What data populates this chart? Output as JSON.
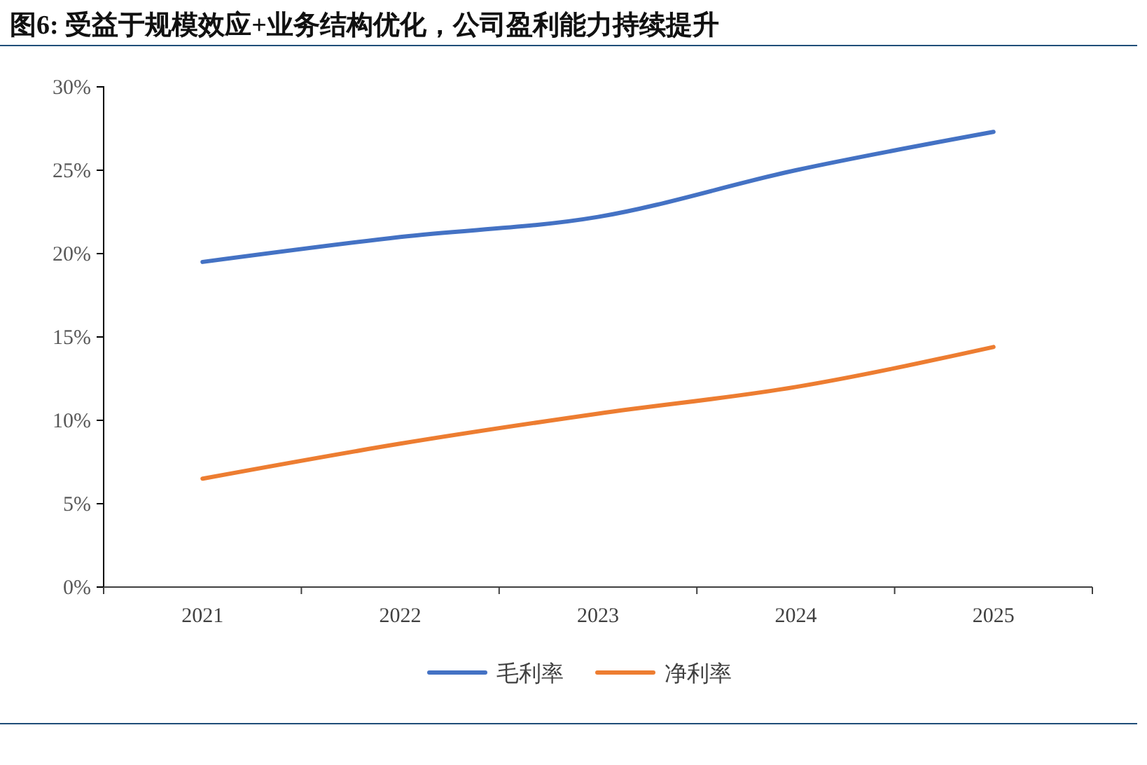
{
  "chart_data": {
    "type": "line",
    "title": "图6: 受益于规模效应+业务结构优化，公司盈利能力持续提升",
    "categories": [
      "2021",
      "2022",
      "2023",
      "2024",
      "2025"
    ],
    "series": [
      {
        "name": "毛利率",
        "color": "#4472c4",
        "values": [
          19.5,
          21.0,
          22.2,
          25.0,
          27.3
        ]
      },
      {
        "name": "净利率",
        "color": "#ed7d31",
        "values": [
          6.5,
          8.6,
          10.4,
          12.0,
          14.4
        ]
      }
    ],
    "ylim": [
      0,
      30
    ],
    "yticks": [
      {
        "value": 0,
        "label": "0%"
      },
      {
        "value": 5,
        "label": "5%"
      },
      {
        "value": 10,
        "label": "10%"
      },
      {
        "value": 15,
        "label": "15%"
      },
      {
        "value": 20,
        "label": "20%"
      },
      {
        "value": 25,
        "label": "25%"
      },
      {
        "value": 30,
        "label": "30%"
      }
    ],
    "legend": "bottom",
    "line_style": "solid"
  }
}
